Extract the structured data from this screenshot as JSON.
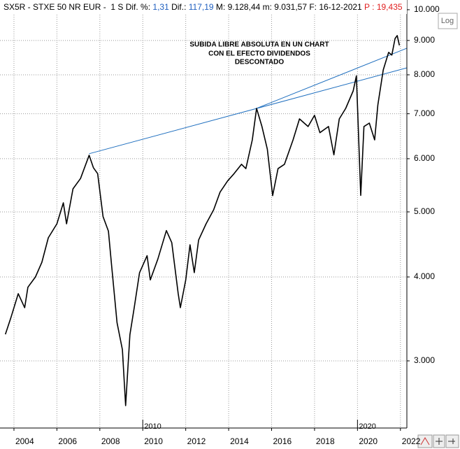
{
  "chart_data": {
    "type": "line",
    "log_scale": true,
    "grid": true,
    "header": [
      {
        "text": "SX5R - STXE 50 NR EUR -  1 S Dif. %: ",
        "color": "#000000"
      },
      {
        "text": "1,31",
        "color": "#1f5fbf"
      },
      {
        "text": " Dif.: ",
        "color": "#000000"
      },
      {
        "text": "117,19",
        "color": "#1f5fbf"
      },
      {
        "text": " M: 9.128,44 m: 9.031,57 F: 16-12-2021 ",
        "color": "#000000"
      },
      {
        "text": "P : 19,435",
        "color": "#e02020"
      }
    ],
    "log_button": "Log",
    "annotation": [
      "SUBIDA LIBRE ABSOLUTA EN UN CHART",
      "CON EL EFECTO DIVIDENDOS",
      "DESCONTADO"
    ],
    "color": "#000000",
    "x": [
      2003.6,
      2003.85,
      2004.2,
      2004.5,
      2004.65,
      2005.0,
      2005.3,
      2005.6,
      2006.0,
      2006.3,
      2006.45,
      2006.75,
      2007.1,
      2007.5,
      2007.7,
      2007.9,
      2008.15,
      2008.4,
      2008.55,
      2008.8,
      2009.05,
      2009.2,
      2009.4,
      2009.6,
      2009.85,
      2010.2,
      2010.35,
      2010.7,
      2011.1,
      2011.35,
      2011.65,
      2011.75,
      2012.0,
      2012.2,
      2012.4,
      2012.6,
      2012.95,
      2013.3,
      2013.6,
      2013.95,
      2014.25,
      2014.6,
      2014.8,
      2015.1,
      2015.3,
      2015.55,
      2015.8,
      2016.05,
      2016.3,
      2016.6,
      2017.0,
      2017.3,
      2017.7,
      2018.0,
      2018.25,
      2018.65,
      2018.9,
      2019.15,
      2019.45,
      2019.8,
      2019.95,
      2020.15,
      2020.3,
      2020.55,
      2020.8,
      2020.95,
      2021.2,
      2021.45,
      2021.6,
      2021.75,
      2021.85,
      2021.95
    ],
    "values": [
      3286,
      3474,
      3777,
      3600,
      3862,
      4000,
      4207,
      4575,
      4800,
      5158,
      4800,
      5411,
      5607,
      6071,
      5817,
      5700,
      4920,
      4680,
      4155,
      3420,
      3117,
      2573,
      3280,
      3600,
      4059,
      4303,
      3960,
      4250,
      4689,
      4500,
      3777,
      3600,
      3960,
      4467,
      4060,
      4540,
      4800,
      5036,
      5350,
      5560,
      5700,
      5886,
      5800,
      6400,
      7130,
      6700,
      6200,
      5287,
      5800,
      5886,
      6400,
      6878,
      6700,
      6963,
      6560,
      6700,
      6080,
      6878,
      7130,
      7570,
      7970,
      5290,
      6700,
      6780,
      6400,
      7215,
      8134,
      8640,
      8560,
      9060,
      9150,
      8850
    ],
    "trendlines": [
      {
        "color": "#1f6fbf",
        "x": [
          2007.5,
          2022.3
        ],
        "values": [
          6103,
          8193
        ]
      },
      {
        "color": "#1f6fbf",
        "x": [
          2015.3,
          2022.3
        ],
        "values": [
          7130,
          8763
        ]
      }
    ],
    "xlim": [
      2003.35,
      2022.3
    ],
    "xticks": [
      2004,
      2006,
      2008,
      2010,
      2012,
      2014,
      2016,
      2018,
      2020,
      2022
    ],
    "decade_ticks": [
      2010,
      2020
    ],
    "ylim": [
      2383,
      10339
    ],
    "yticks": [
      {
        "value": 3000,
        "label": "3.000"
      },
      {
        "value": 4000,
        "label": "4.000"
      },
      {
        "value": 5000,
        "label": "5.000"
      },
      {
        "value": 6000,
        "label": "6.000"
      },
      {
        "value": 7000,
        "label": "7.000"
      },
      {
        "value": 8000,
        "label": "8.000"
      },
      {
        "value": 9000,
        "label": "9.000"
      },
      {
        "value": 10000,
        "label": "10.000"
      }
    ]
  }
}
